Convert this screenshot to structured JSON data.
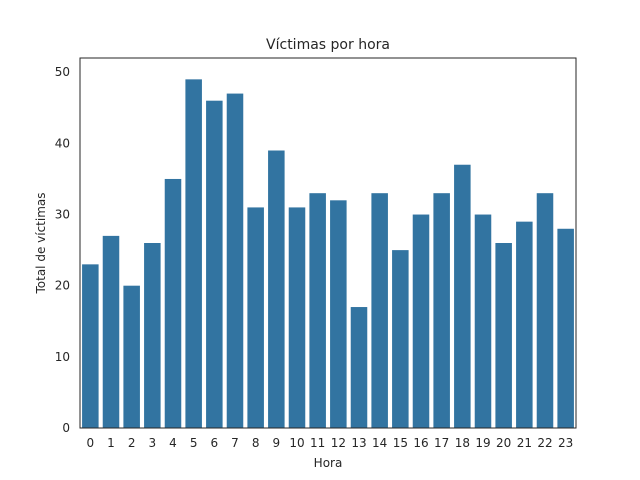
{
  "chart_data": {
    "type": "bar",
    "title": "Víctimas por hora",
    "xlabel": "Hora",
    "ylabel": "Total de víctimas",
    "categories": [
      "0",
      "1",
      "2",
      "3",
      "4",
      "5",
      "6",
      "7",
      "8",
      "9",
      "10",
      "11",
      "12",
      "13",
      "14",
      "15",
      "16",
      "17",
      "18",
      "19",
      "20",
      "21",
      "22",
      "23"
    ],
    "values": [
      23,
      27,
      20,
      26,
      35,
      49,
      46,
      47,
      31,
      39,
      31,
      33,
      32,
      17,
      33,
      25,
      30,
      33,
      37,
      30,
      26,
      29,
      33,
      28
    ],
    "ylim": [
      0,
      52
    ],
    "yticks": [
      0,
      10,
      20,
      30,
      40,
      50
    ],
    "grid": false,
    "bar_color": "#3274a1"
  }
}
